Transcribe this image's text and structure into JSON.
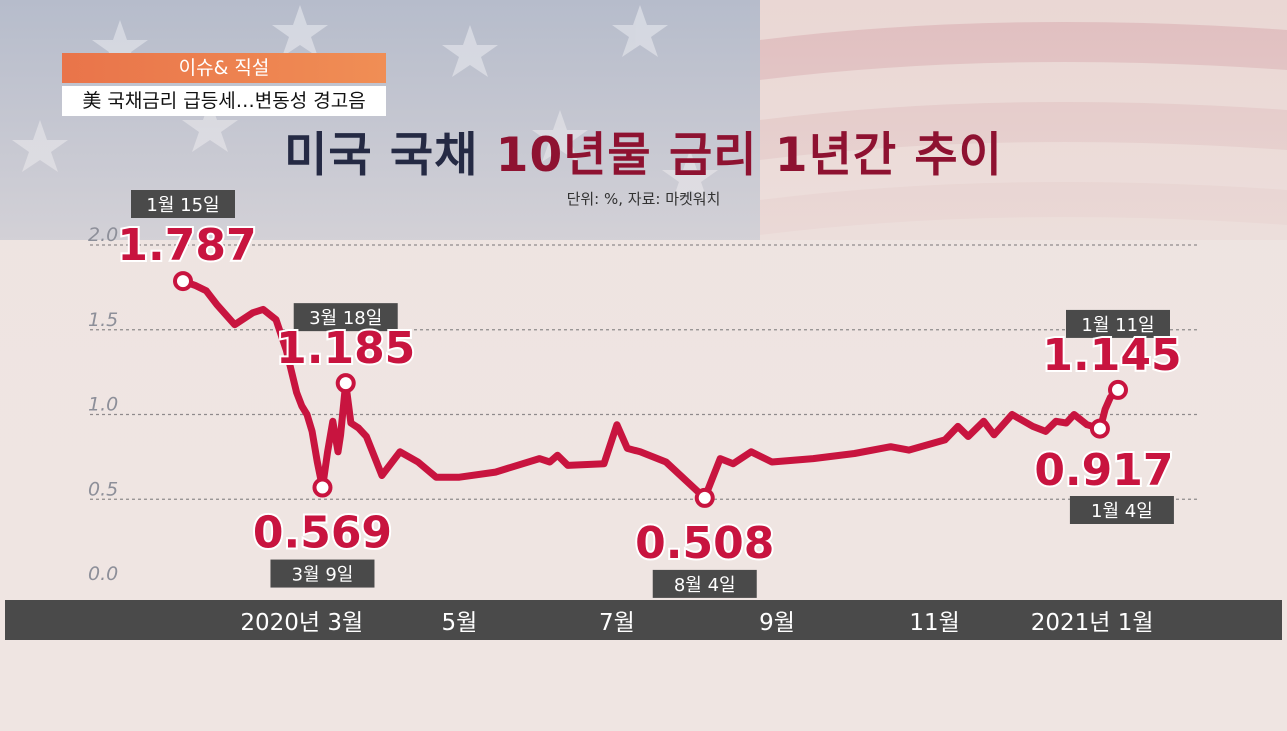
{
  "header": {
    "tag": "이슈& 직설",
    "headline": "美 국채금리 급등세…변동성 경고음"
  },
  "colors": {
    "line": "#c8143f",
    "title_dark": "#252a44",
    "title_accent": "#8e1231",
    "axis_bar": "#4a4a4a",
    "label_box": "#4a4a4a",
    "tag_orange": "#ee7d4f"
  },
  "chart_data": {
    "type": "line",
    "title_part1": "미국 국채 ",
    "title_part2": "10년물 금리 1년간 추이",
    "subtitle": "단위: %, 자료: 마켓워치",
    "ylim": [
      0,
      2.0
    ],
    "yticks": [
      "0.0",
      "0.5",
      "1.0",
      "1.5",
      "2.0"
    ],
    "xticks": [
      {
        "label": "2020년 3월",
        "x": "2020-03-01"
      },
      {
        "label": "5월",
        "x": "2020-05-01"
      },
      {
        "label": "7월",
        "x": "2020-07-01"
      },
      {
        "label": "9월",
        "x": "2020-09-01"
      },
      {
        "label": "11월",
        "x": "2020-11-01"
      },
      {
        "label": "2021년 1월",
        "x": "2021-01-01"
      }
    ],
    "grid": true,
    "series": [
      {
        "points": [
          [
            "2020-01-15",
            1.787
          ],
          [
            "2020-01-20",
            1.76
          ],
          [
            "2020-01-24",
            1.73
          ],
          [
            "2020-01-28",
            1.65
          ],
          [
            "2020-02-04",
            1.53
          ],
          [
            "2020-02-11",
            1.6
          ],
          [
            "2020-02-15",
            1.62
          ],
          [
            "2020-02-20",
            1.56
          ],
          [
            "2020-02-24",
            1.38
          ],
          [
            "2020-02-28",
            1.13
          ],
          [
            "2020-03-01",
            1.05
          ],
          [
            "2020-03-03",
            1.0
          ],
          [
            "2020-03-05",
            0.9
          ],
          [
            "2020-03-07",
            0.72
          ],
          [
            "2020-03-09",
            0.569
          ],
          [
            "2020-03-11",
            0.78
          ],
          [
            "2020-03-13",
            0.96
          ],
          [
            "2020-03-15",
            0.78
          ],
          [
            "2020-03-16",
            0.88
          ],
          [
            "2020-03-18",
            1.185
          ],
          [
            "2020-03-20",
            0.95
          ],
          [
            "2020-03-23",
            0.92
          ],
          [
            "2020-03-26",
            0.87
          ],
          [
            "2020-04-01",
            0.64
          ],
          [
            "2020-04-08",
            0.78
          ],
          [
            "2020-04-15",
            0.72
          ],
          [
            "2020-04-22",
            0.63
          ],
          [
            "2020-05-01",
            0.63
          ],
          [
            "2020-05-15",
            0.66
          ],
          [
            "2020-06-01",
            0.74
          ],
          [
            "2020-06-05",
            0.72
          ],
          [
            "2020-06-08",
            0.76
          ],
          [
            "2020-06-12",
            0.7
          ],
          [
            "2020-06-26",
            0.71
          ],
          [
            "2020-07-01",
            0.94
          ],
          [
            "2020-07-05",
            0.8
          ],
          [
            "2020-07-10",
            0.78
          ],
          [
            "2020-07-20",
            0.72
          ],
          [
            "2020-08-04",
            0.508
          ],
          [
            "2020-08-10",
            0.74
          ],
          [
            "2020-08-15",
            0.71
          ],
          [
            "2020-08-22",
            0.78
          ],
          [
            "2020-08-30",
            0.72
          ],
          [
            "2020-09-15",
            0.74
          ],
          [
            "2020-10-01",
            0.77
          ],
          [
            "2020-10-15",
            0.81
          ],
          [
            "2020-10-22",
            0.79
          ],
          [
            "2020-11-05",
            0.85
          ],
          [
            "2020-11-10",
            0.93
          ],
          [
            "2020-11-14",
            0.87
          ],
          [
            "2020-11-20",
            0.96
          ],
          [
            "2020-11-24",
            0.88
          ],
          [
            "2020-12-01",
            1.0
          ],
          [
            "2020-12-09",
            0.93
          ],
          [
            "2020-12-14",
            0.9
          ],
          [
            "2020-12-18",
            0.96
          ],
          [
            "2020-12-22",
            0.95
          ],
          [
            "2020-12-25",
            1.0
          ],
          [
            "2020-12-30",
            0.94
          ],
          [
            "2021-01-04",
            0.917
          ],
          [
            "2021-01-05",
            0.97
          ],
          [
            "2021-01-06",
            1.03
          ],
          [
            "2021-01-08",
            1.1
          ],
          [
            "2021-01-11",
            1.145
          ]
        ]
      }
    ],
    "annotations": [
      {
        "date": "2020-01-15",
        "value": "1.787",
        "label": "1월 15일",
        "pos": "above"
      },
      {
        "date": "2020-03-18",
        "value": "1.185",
        "label": "3월 18일",
        "pos": "above"
      },
      {
        "date": "2020-03-09",
        "value": "0.569",
        "label": "3월 9일",
        "pos": "below"
      },
      {
        "date": "2020-08-04",
        "value": "0.508",
        "label": "8월 4일",
        "pos": "below"
      },
      {
        "date": "2021-01-11",
        "value": "1.145",
        "label": "1월 11일",
        "pos": "above"
      },
      {
        "date": "2021-01-04",
        "value": "0.917",
        "label": "1월 4일",
        "pos": "below"
      }
    ]
  }
}
